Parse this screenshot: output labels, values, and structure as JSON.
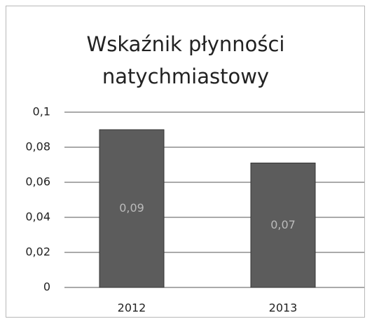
{
  "chart_data": {
    "type": "bar",
    "title": "Wskaźnik płynności natychmiastowy",
    "categories": [
      "2012",
      "2013"
    ],
    "values": [
      0.09,
      0.071
    ],
    "value_labels": [
      "0,09",
      "0,07"
    ],
    "color": "#5c5c5c",
    "ylim": [
      0,
      0.1
    ],
    "yticks": [
      {
        "value": 0,
        "label": "0"
      },
      {
        "value": 0.02,
        "label": "0,02"
      },
      {
        "value": 0.04,
        "label": "0,04"
      },
      {
        "value": 0.06,
        "label": "0,06"
      },
      {
        "value": 0.08,
        "label": "0,08"
      },
      {
        "value": 0.1,
        "label": "0,1"
      }
    ],
    "grid": true
  }
}
